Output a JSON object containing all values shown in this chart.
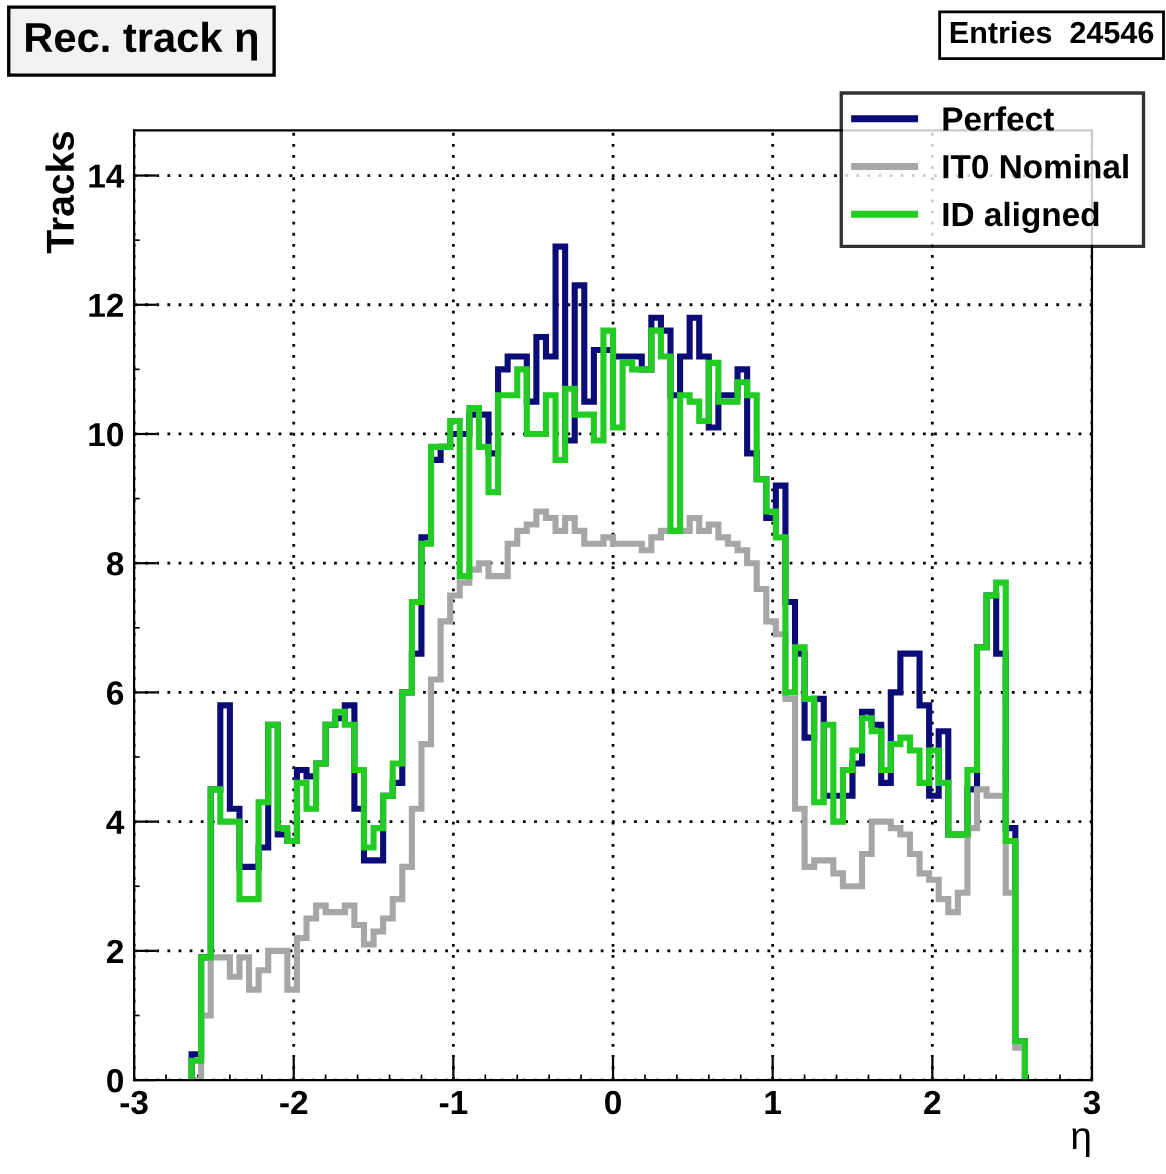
{
  "chart_data": {
    "type": "histogram",
    "title": "Rec. track η",
    "xlabel": "η",
    "ylabel": "Tracks",
    "annotations": [
      "Entries  24546"
    ],
    "bins": [
      -2.64,
      -2.58,
      -2.52,
      -2.46,
      -2.4,
      -2.34,
      -2.28,
      -2.22,
      -2.16,
      -2.1,
      -2.04,
      -1.98,
      -1.92,
      -1.86,
      -1.8,
      -1.74,
      -1.68,
      -1.62,
      -1.56,
      -1.5,
      -1.44,
      -1.38,
      -1.32,
      -1.26,
      -1.2,
      -1.14,
      -1.08,
      -1.02,
      -0.96,
      -0.9,
      -0.84,
      -0.78,
      -0.72,
      -0.66,
      -0.6,
      -0.54,
      -0.48,
      -0.42,
      -0.36,
      -0.3,
      -0.24,
      -0.18,
      -0.12,
      -0.06,
      0,
      0.06,
      0.12,
      0.18,
      0.24,
      0.3,
      0.36,
      0.42,
      0.48,
      0.54,
      0.6,
      0.66,
      0.72,
      0.78,
      0.84,
      0.9,
      0.96,
      1.02,
      1.08,
      1.14,
      1.2,
      1.26,
      1.32,
      1.38,
      1.44,
      1.5,
      1.56,
      1.62,
      1.68,
      1.74,
      1.8,
      1.86,
      1.92,
      1.98,
      2.04,
      2.1,
      2.16,
      2.22,
      2.28,
      2.34,
      2.4,
      2.46,
      2.52,
      2.58
    ],
    "series": [
      {
        "name": "Perfect",
        "color": "#0c0c78",
        "values": [
          0.4,
          1.9,
          4.5,
          5.8,
          4.2,
          3.3,
          3.3,
          3.6,
          5.5,
          3.8,
          3.7,
          4.8,
          4.7,
          4.9,
          5.5,
          5.6,
          5.8,
          4.2,
          3.4,
          3.4,
          4.4,
          4.6,
          6.0,
          6.6,
          8.4,
          9.6,
          9.8,
          10.0,
          10.0,
          10.3,
          10.3,
          9.7,
          11.0,
          11.2,
          11.2,
          10.5,
          11.5,
          11.2,
          12.9,
          9.9,
          12.3,
          10.5,
          11.3,
          11.3,
          11.2,
          11.2,
          11.2,
          11.0,
          11.8,
          11.6,
          10.6,
          11.2,
          11.8,
          11.2,
          10.1,
          10.6,
          10.6,
          11.0,
          9.7,
          9.3,
          8.7,
          9.2,
          7.4,
          6.6,
          5.3,
          5.9,
          4.4,
          4.4,
          4.4,
          4.9,
          5.7,
          5.5,
          4.6,
          6.0,
          6.6,
          6.6,
          5.8,
          4.4,
          5.4,
          3.8,
          3.8,
          4.5,
          6.7,
          7.5,
          6.6,
          3.9,
          0.6
        ]
      },
      {
        "name": "IT0 Nominal",
        "color": "#a6a6a6",
        "values": [
          0,
          1.0,
          1.9,
          1.9,
          1.6,
          1.9,
          1.4,
          1.7,
          2.0,
          2.0,
          1.4,
          2.2,
          2.5,
          2.7,
          2.6,
          2.6,
          2.7,
          2.4,
          2.1,
          2.3,
          2.5,
          2.8,
          3.3,
          4.2,
          5.2,
          6.2,
          7.1,
          7.5,
          7.7,
          7.9,
          8.0,
          7.8,
          7.8,
          8.3,
          8.5,
          8.6,
          8.8,
          8.7,
          8.5,
          8.7,
          8.5,
          8.3,
          8.3,
          8.4,
          8.3,
          8.3,
          8.3,
          8.2,
          8.4,
          8.5,
          8.5,
          8.5,
          8.7,
          8.5,
          8.6,
          8.4,
          8.3,
          8.2,
          8.0,
          7.6,
          7.1,
          6.9,
          5.9,
          4.2,
          3.3,
          3.4,
          3.4,
          3.2,
          3.0,
          3.0,
          3.5,
          4.0,
          4.0,
          3.9,
          3.8,
          3.5,
          3.2,
          3.1,
          2.8,
          2.6,
          2.9,
          3.9,
          4.5,
          4.4,
          4.4,
          2.9,
          0.5
        ]
      },
      {
        "name": "ID aligned",
        "color": "#22cc22",
        "values": [
          0.3,
          1.9,
          4.5,
          4.0,
          4.0,
          2.8,
          2.8,
          4.3,
          5.5,
          3.9,
          3.7,
          4.6,
          4.2,
          4.9,
          5.5,
          5.7,
          5.5,
          4.8,
          3.6,
          3.9,
          4.4,
          4.9,
          6.0,
          7.4,
          8.3,
          9.8,
          9.8,
          10.2,
          7.8,
          10.4,
          9.8,
          9.1,
          10.6,
          10.6,
          11.0,
          10.0,
          10.0,
          10.6,
          9.6,
          10.7,
          10.3,
          10.3,
          9.9,
          11.6,
          10.1,
          11.1,
          11.0,
          11.0,
          11.6,
          11.2,
          8.5,
          10.6,
          10.5,
          10.2,
          11.1,
          10.5,
          10.5,
          10.8,
          10.6,
          9.3,
          8.8,
          8.4,
          6.0,
          6.7,
          5.9,
          4.3,
          5.5,
          4.0,
          4.8,
          5.1,
          5.6,
          5.4,
          4.8,
          5.2,
          5.3,
          5.1,
          4.6,
          5.1,
          4.6,
          3.8,
          3.8,
          4.8,
          6.7,
          7.5,
          7.7,
          3.7,
          0.6
        ]
      }
    ],
    "xlim": [
      -3,
      3
    ],
    "ylim": [
      0,
      14.7
    ],
    "xticks": [
      -3,
      -2,
      -1,
      0,
      1,
      2,
      3
    ],
    "yticks": [
      0,
      2,
      4,
      6,
      8,
      10,
      12,
      14
    ],
    "grid": true,
    "legend": "top right"
  }
}
